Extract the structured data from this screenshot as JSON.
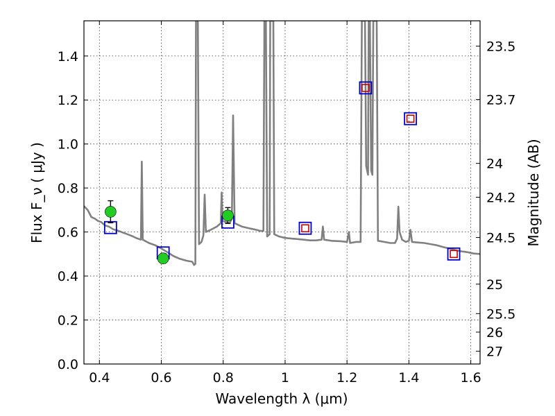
{
  "chart_data": {
    "type": "line",
    "title": "",
    "xlabel": "Wavelength  λ (μm)",
    "ylabel": "Flux  F_ν  ( μJy )",
    "ylabel_right": "Magnitude (AB)",
    "xlim": [
      0.35,
      1.63
    ],
    "ylim": [
      0.0,
      1.56
    ],
    "grid": true,
    "x_ticks": [
      0.4,
      0.6,
      0.8,
      1.0,
      1.2,
      1.4,
      1.6
    ],
    "x_tick_labels": [
      "0.4",
      "0.6",
      "0.8",
      "1",
      "1.2",
      "1.4",
      "1.6"
    ],
    "y_ticks": [
      0.0,
      0.2,
      0.4,
      0.6,
      0.8,
      1.0,
      1.2,
      1.4
    ],
    "y_tick_labels": [
      "0.0",
      "0.2",
      "0.4",
      "0.6",
      "0.8",
      "1.0",
      "1.2",
      "1.4"
    ],
    "right_ticks": [
      {
        "label": "23.5",
        "flux": 1.445
      },
      {
        "label": "23.7",
        "flux": 1.202
      },
      {
        "label": "24",
        "flux": 0.912
      },
      {
        "label": "24.2",
        "flux": 0.758
      },
      {
        "label": "24.5",
        "flux": 0.575
      },
      {
        "label": "25",
        "flux": 0.363
      },
      {
        "label": "25.5",
        "flux": 0.229
      },
      {
        "label": "26",
        "flux": 0.145
      },
      {
        "label": "27",
        "flux": 0.058
      }
    ],
    "series": [
      {
        "color": "#808080",
        "points": [
          [
            0.35,
            0.718
          ],
          [
            0.362,
            0.7
          ],
          [
            0.374,
            0.668
          ],
          [
            0.386,
            0.66
          ],
          [
            0.396,
            0.65
          ],
          [
            0.406,
            0.645
          ],
          [
            0.418,
            0.63
          ],
          [
            0.43,
            0.625
          ],
          [
            0.445,
            0.612
          ],
          [
            0.46,
            0.606
          ],
          [
            0.475,
            0.598
          ],
          [
            0.49,
            0.59
          ],
          [
            0.505,
            0.582
          ],
          [
            0.52,
            0.572
          ],
          [
            0.534,
            0.565
          ],
          [
            0.537,
            0.92
          ],
          [
            0.54,
            0.565
          ],
          [
            0.56,
            0.55
          ],
          [
            0.58,
            0.54
          ],
          [
            0.6,
            0.525
          ],
          [
            0.62,
            0.508
          ],
          [
            0.64,
            0.49
          ],
          [
            0.66,
            0.478
          ],
          [
            0.68,
            0.47
          ],
          [
            0.7,
            0.465
          ],
          [
            0.706,
            0.45
          ],
          [
            0.71,
            0.455
          ],
          [
            0.712,
            1.56
          ],
          [
            0.718,
            1.56
          ],
          [
            0.722,
            0.545
          ],
          [
            0.73,
            0.555
          ],
          [
            0.736,
            0.585
          ],
          [
            0.74,
            0.77
          ],
          [
            0.744,
            0.6
          ],
          [
            0.76,
            0.61
          ],
          [
            0.78,
            0.625
          ],
          [
            0.792,
            0.64
          ],
          [
            0.795,
            0.78
          ],
          [
            0.798,
            0.65
          ],
          [
            0.82,
            0.64
          ],
          [
            0.828,
            0.66
          ],
          [
            0.832,
            1.13
          ],
          [
            0.837,
            0.64
          ],
          [
            0.86,
            0.625
          ],
          [
            0.88,
            0.618
          ],
          [
            0.9,
            0.612
          ],
          [
            0.92,
            0.605
          ],
          [
            0.93,
            0.605
          ],
          [
            0.933,
            1.56
          ],
          [
            0.938,
            1.56
          ],
          [
            0.942,
            0.58
          ],
          [
            0.95,
            0.59
          ],
          [
            0.952,
            1.56
          ],
          [
            0.956,
            1.56
          ],
          [
            0.958,
            1.56
          ],
          [
            0.962,
            1.56
          ],
          [
            0.965,
            0.59
          ],
          [
            0.98,
            0.58
          ],
          [
            1.0,
            0.573
          ],
          [
            1.02,
            0.57
          ],
          [
            1.04,
            0.568
          ],
          [
            1.06,
            0.565
          ],
          [
            1.08,
            0.562
          ],
          [
            1.1,
            0.562
          ],
          [
            1.118,
            0.565
          ],
          [
            1.122,
            0.625
          ],
          [
            1.126,
            0.565
          ],
          [
            1.15,
            0.56
          ],
          [
            1.18,
            0.558
          ],
          [
            1.2,
            0.555
          ],
          [
            1.206,
            0.6
          ],
          [
            1.21,
            0.55
          ],
          [
            1.23,
            0.555
          ],
          [
            1.244,
            0.555
          ],
          [
            1.248,
            1.56
          ],
          [
            1.258,
            1.56
          ],
          [
            1.262,
            0.9
          ],
          [
            1.268,
            0.86
          ],
          [
            1.27,
            1.56
          ],
          [
            1.274,
            1.56
          ],
          [
            1.278,
            0.88
          ],
          [
            1.282,
            0.86
          ],
          [
            1.285,
            1.56
          ],
          [
            1.296,
            1.56
          ],
          [
            1.3,
            0.56
          ],
          [
            1.32,
            0.555
          ],
          [
            1.34,
            0.55
          ],
          [
            1.355,
            0.55
          ],
          [
            1.362,
            0.57
          ],
          [
            1.366,
            0.715
          ],
          [
            1.37,
            0.6
          ],
          [
            1.378,
            0.565
          ],
          [
            1.39,
            0.555
          ],
          [
            1.4,
            0.56
          ],
          [
            1.405,
            0.61
          ],
          [
            1.41,
            0.555
          ],
          [
            1.43,
            0.552
          ],
          [
            1.45,
            0.55
          ],
          [
            1.47,
            0.545
          ],
          [
            1.49,
            0.54
          ],
          [
            1.51,
            0.532
          ],
          [
            1.53,
            0.525
          ],
          [
            1.55,
            0.518
          ],
          [
            1.57,
            0.512
          ],
          [
            1.59,
            0.508
          ],
          [
            1.61,
            0.502
          ],
          [
            1.63,
            0.5
          ]
        ]
      }
    ],
    "photometry": {
      "color": "#22cc22",
      "points": [
        {
          "x": 0.436,
          "y": 0.692,
          "err": 0.05
        },
        {
          "x": 0.606,
          "y": 0.48,
          "err": 0.022
        },
        {
          "x": 0.815,
          "y": 0.675,
          "err": 0.036
        }
      ]
    },
    "model_photometry": {
      "color": "#0000cc",
      "points": [
        {
          "x": 0.436,
          "y": 0.62
        },
        {
          "x": 0.606,
          "y": 0.505
        },
        {
          "x": 0.815,
          "y": 0.645
        },
        {
          "x": 1.065,
          "y": 0.617
        },
        {
          "x": 1.26,
          "y": 1.255
        },
        {
          "x": 1.405,
          "y": 1.115
        },
        {
          "x": 1.545,
          "y": 0.5
        }
      ]
    },
    "nir_photometry": {
      "color": "#cc0000",
      "points": [
        {
          "x": 1.065,
          "y": 0.617
        },
        {
          "x": 1.26,
          "y": 1.255
        },
        {
          "x": 1.405,
          "y": 1.115
        },
        {
          "x": 1.545,
          "y": 0.5
        }
      ]
    }
  }
}
